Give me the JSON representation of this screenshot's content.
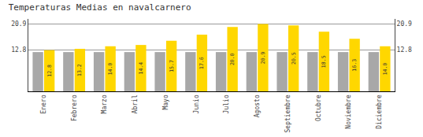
{
  "chart_data": {
    "type": "bar",
    "title": "Temperaturas Medias en navalcarnero",
    "categories": [
      "Enero",
      "Febrero",
      "Marzo",
      "Abril",
      "Mayo",
      "Junio",
      "Julio",
      "Agosto",
      "Septiembre",
      "Octubre",
      "Noviembre",
      "Diciembre"
    ],
    "series": [
      {
        "color": "#A8A8A8",
        "values": [
          12.2,
          12.2,
          12.2,
          12.2,
          12.2,
          12.2,
          12.2,
          12.2,
          12.2,
          12.2,
          12.2,
          12.2
        ]
      },
      {
        "color": "#FFD700",
        "values": [
          12.8,
          13.2,
          14.0,
          14.4,
          15.7,
          17.6,
          20.0,
          20.9,
          20.5,
          18.5,
          16.3,
          14.0
        ],
        "value_labels": [
          "12.8",
          "13.2",
          "14.0",
          "14.4",
          "15.7",
          "17.6",
          "20.0",
          "20.9",
          "20.5",
          "18.5",
          "16.3",
          "14.0"
        ],
        "data_labels": true
      }
    ],
    "ylim": [
      0,
      22.5
    ],
    "yticks": [
      12.8,
      20.9
    ],
    "y2lim": [
      0,
      22.5
    ],
    "y2ticks": [
      12.8,
      20.9
    ],
    "grid": true
  }
}
